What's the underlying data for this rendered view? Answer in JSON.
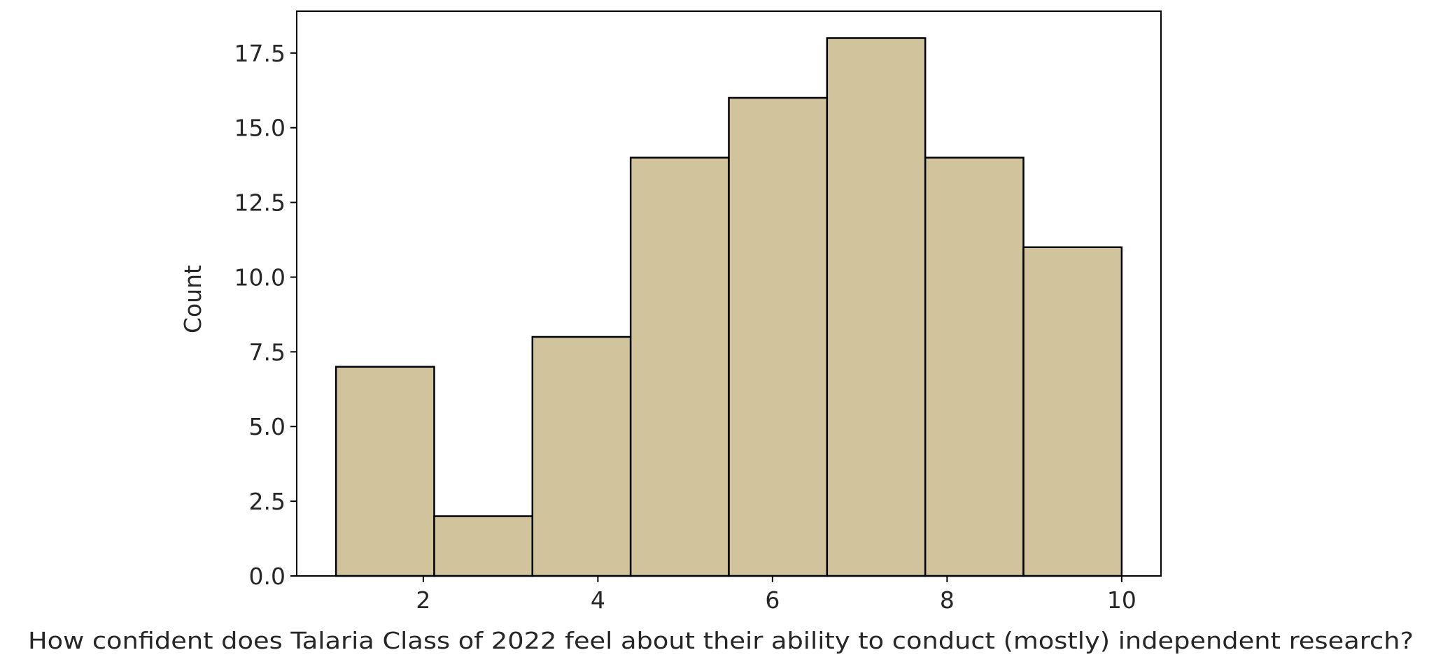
{
  "chart_data": {
    "type": "bar",
    "title": "",
    "xlabel": "How confident does Talaria Class of 2022 feel about their ability to conduct (mostly) independent research?",
    "ylabel": "Count",
    "bins": [
      {
        "x0": 1.0,
        "x1": 2.125,
        "count": 7
      },
      {
        "x0": 2.125,
        "x1": 3.25,
        "count": 2
      },
      {
        "x0": 3.25,
        "x1": 4.375,
        "count": 8
      },
      {
        "x0": 4.375,
        "x1": 5.5,
        "count": 14
      },
      {
        "x0": 5.5,
        "x1": 6.625,
        "count": 16
      },
      {
        "x0": 6.625,
        "x1": 7.75,
        "count": 18
      },
      {
        "x0": 7.75,
        "x1": 8.875,
        "count": 14
      },
      {
        "x0": 8.875,
        "x1": 10.0,
        "count": 11
      }
    ],
    "xlim": [
      0.55,
      10.45
    ],
    "ylim": [
      0,
      18.9
    ],
    "xticks": [
      2,
      4,
      6,
      8,
      10
    ],
    "yticks": [
      0.0,
      2.5,
      5.0,
      7.5,
      10.0,
      12.5,
      15.0,
      17.5
    ],
    "xtick_labels": [
      "2",
      "4",
      "6",
      "8",
      "10"
    ],
    "ytick_labels": [
      "0.0",
      "2.5",
      "5.0",
      "7.5",
      "10.0",
      "12.5",
      "15.0",
      "17.5"
    ],
    "bar_color": "#d1c39c",
    "edge_color": "#000000",
    "grid": false,
    "legend": "none"
  }
}
